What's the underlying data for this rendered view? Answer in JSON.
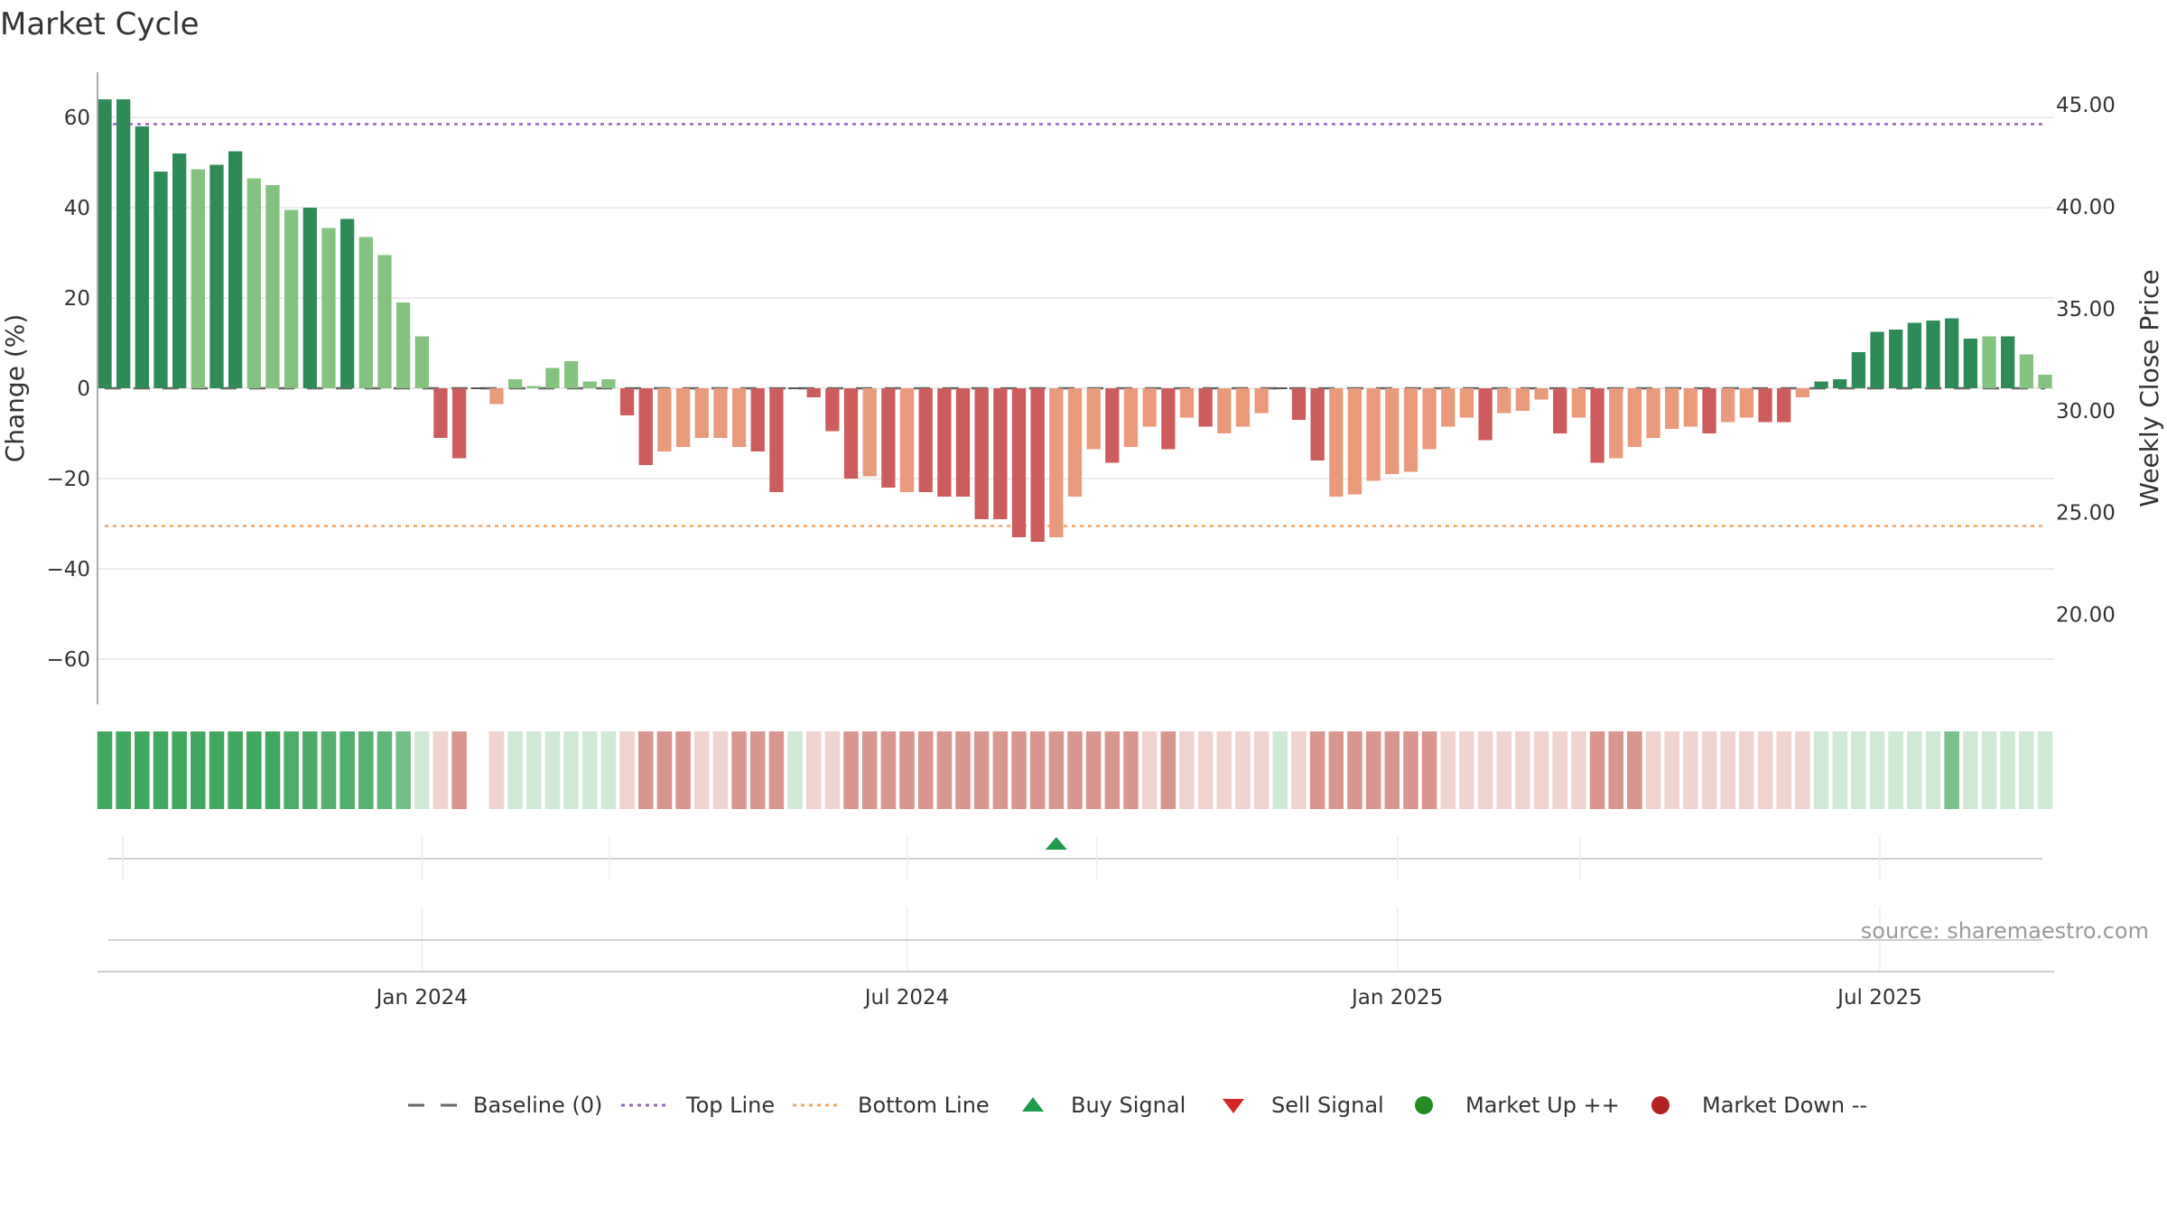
{
  "chart_data": {
    "type": "bar",
    "title": "Market Cycle",
    "ylabel_left": "Change (%)",
    "ylabel_right": "Weekly Close Price",
    "ylim_left": [
      -70,
      70
    ],
    "ylim_right": [
      15.6,
      46.6
    ],
    "y_ticks_left": [
      {
        "v": 60,
        "label": "60"
      },
      {
        "v": 40,
        "label": "40"
      },
      {
        "v": 20,
        "label": "20"
      },
      {
        "v": 0,
        "label": "0"
      },
      {
        "v": -20,
        "label": "−20"
      },
      {
        "v": -40,
        "label": "−40"
      },
      {
        "v": -60,
        "label": "−60"
      }
    ],
    "y_ticks_right": [
      "45.00",
      "40.00",
      "35.00",
      "30.00",
      "25.00",
      "20.00"
    ],
    "y_tick_values_right": [
      45,
      40,
      35,
      30,
      25,
      20
    ],
    "x_ticks": [
      {
        "label": "Jan 2024",
        "date": "2024-01-01"
      },
      {
        "label": "Jul 2024",
        "date": "2024-07-01"
      },
      {
        "label": "Jan 2025",
        "date": "2025-01-01"
      },
      {
        "label": "Jul 2025",
        "date": "2025-07-01"
      }
    ],
    "first_week": "2023-09-04",
    "top_line": 58.5,
    "bottom_line": -30.5,
    "baseline": 0,
    "values": [
      64,
      64,
      58,
      48,
      52,
      48.5,
      49.5,
      52.5,
      46.5,
      45,
      39.5,
      40,
      35.5,
      37.5,
      33.5,
      29.5,
      19,
      11.5,
      -11,
      -15.5,
      0,
      -3.5,
      2,
      0.5,
      4.5,
      6,
      1.5,
      2,
      -6,
      -17,
      -14,
      -13,
      -11,
      -11,
      -13,
      -14,
      -23,
      0,
      -2,
      -9.5,
      -20,
      -19.5,
      -22,
      -23,
      -23,
      -24,
      -24,
      -29,
      -29,
      -33,
      -34,
      -33,
      -24,
      -13.5,
      -16.5,
      -13,
      -8.5,
      -13.5,
      -6.5,
      -8.5,
      -10,
      -8.5,
      -5.5,
      0,
      -7,
      -16,
      -24,
      -23.5,
      -20.5,
      -19,
      -18.5,
      -13.5,
      -8.5,
      -6.5,
      -11.5,
      -5.5,
      -5,
      -2.5,
      -10,
      -6.5,
      -16.5,
      -15.5,
      -13,
      -11,
      -9,
      -8.5,
      -10,
      -7.5,
      -6.5,
      -7.5,
      -7.5,
      -2,
      1.5,
      2,
      8,
      12.5,
      13,
      14.5,
      15,
      15.5,
      11,
      11.5,
      11.5,
      7.5,
      3
    ],
    "bar_colors": {
      "up_strong": "#2e8b57",
      "up_weak": "#84c37f",
      "down_strong": "#cd5c5c",
      "down_weak": "#e99a7a"
    },
    "heat_colors": {
      "up_strong": "#41a85f",
      "up_weak": "#cfe9d4",
      "down_strong": "#d9968e",
      "down_weak": "#f0d2cf"
    },
    "signal": {
      "type": "buy",
      "date": "2024-08-26",
      "color": "#1e9b4c"
    },
    "source": "source: sharemaestro.com",
    "legend": [
      {
        "label": "Baseline (0)",
        "kind": "dash",
        "color": "#666666"
      },
      {
        "label": "Top Line",
        "kind": "dot",
        "color": "#9467bd"
      },
      {
        "label": "Bottom Line",
        "kind": "dot",
        "color": "#f4a460"
      },
      {
        "label": "Buy Signal",
        "kind": "tri-up",
        "color": "#1e9b4c"
      },
      {
        "label": "Sell Signal",
        "kind": "tri-down",
        "color": "#d62728"
      },
      {
        "label": "Market Up ++",
        "kind": "circle",
        "color": "#228b22"
      },
      {
        "label": "Market Down --",
        "kind": "circle",
        "color": "#b22222"
      }
    ]
  }
}
